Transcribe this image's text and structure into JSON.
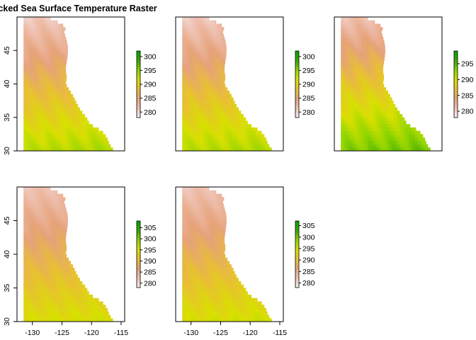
{
  "title": "Stacked Sea Surface Temperature Raster",
  "colors": {
    "scale": [
      "#f2f2f2",
      "#efc2b3",
      "#e6a27a",
      "#e8c032",
      "#d8e000",
      "#8fd400",
      "#3aa600",
      "#00a600"
    ],
    "frame": "#000000"
  },
  "chart_data": [
    {
      "type": "heatmap",
      "panel": 1,
      "xlim": [
        -132.6,
        -114.4
      ],
      "ylim": [
        30,
        50
      ],
      "yticks": [
        30,
        35,
        40,
        45
      ],
      "ytick_labels": [
        "30",
        "35",
        "40",
        "45"
      ],
      "xticks": [],
      "xtick_labels": [],
      "legend": {
        "range": [
          278,
          302
        ],
        "ticks": [
          280,
          285,
          290,
          295,
          300
        ],
        "tick_labels": [
          "280",
          "285",
          "290",
          "295",
          "300"
        ],
        "placement": "right"
      }
    },
    {
      "type": "heatmap",
      "panel": 2,
      "xlim": [
        -132.6,
        -114.4
      ],
      "ylim": [
        30,
        50
      ],
      "yticks": [],
      "ytick_labels": [],
      "xticks": [],
      "xtick_labels": [],
      "legend": {
        "range": [
          278,
          302
        ],
        "ticks": [
          280,
          285,
          290,
          295,
          300
        ],
        "tick_labels": [
          "280",
          "285",
          "290",
          "295",
          "300"
        ],
        "placement": "right"
      }
    },
    {
      "type": "heatmap",
      "panel": 3,
      "xlim": [
        -132.6,
        -114.4
      ],
      "ylim": [
        30,
        50
      ],
      "yticks": [],
      "ytick_labels": [],
      "xticks": [],
      "xtick_labels": [],
      "legend": {
        "range": [
          278,
          299
        ],
        "ticks": [
          280,
          285,
          290,
          295
        ],
        "tick_labels": [
          "280",
          "285",
          "290",
          "295"
        ],
        "placement": "right"
      }
    },
    {
      "type": "heatmap",
      "panel": 4,
      "xlim": [
        -132.6,
        -114.4
      ],
      "ylim": [
        30,
        50
      ],
      "yticks": [
        30,
        35,
        40,
        45
      ],
      "ytick_labels": [
        "30",
        "35",
        "40",
        "45"
      ],
      "xticks": [
        -130,
        -125,
        -120,
        -115
      ],
      "xtick_labels": [
        "-130",
        "-125",
        "-120",
        "-115"
      ],
      "legend": {
        "range": [
          278,
          308
        ],
        "ticks": [
          280,
          285,
          290,
          295,
          300,
          305
        ],
        "tick_labels": [
          "280",
          "285",
          "290",
          "295",
          "300",
          "305"
        ],
        "placement": "right"
      }
    },
    {
      "type": "heatmap",
      "panel": 5,
      "xlim": [
        -132.6,
        -114.4
      ],
      "ylim": [
        30,
        50
      ],
      "yticks": [],
      "ytick_labels": [],
      "xticks": [
        -130,
        -125,
        -120,
        -115
      ],
      "xtick_labels": [
        "-130",
        "-125",
        "-120",
        "-115"
      ],
      "legend": {
        "range": [
          278,
          307
        ],
        "ticks": [
          280,
          285,
          290,
          295,
          300,
          305
        ],
        "tick_labels": [
          "280",
          "285",
          "290",
          "295",
          "300",
          "305"
        ],
        "placement": "right"
      }
    }
  ]
}
